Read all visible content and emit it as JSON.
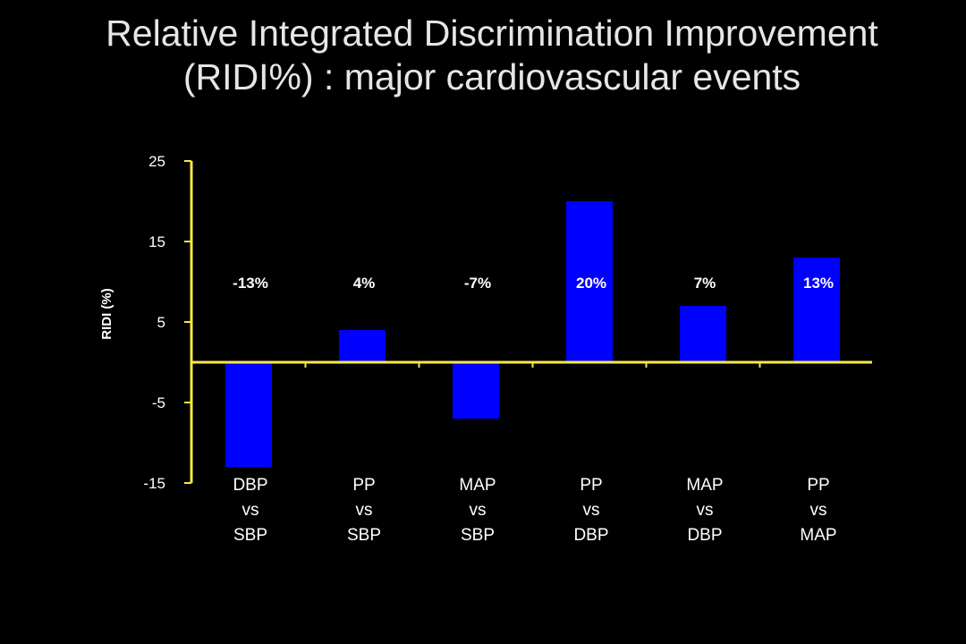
{
  "title_line1": "Relative Integrated Discrimination Improvement",
  "title_line2": "(RIDI%) : major cardiovascular events",
  "colors": {
    "bar": "#0000ff",
    "axis": "#f5e84a",
    "background": "#000000",
    "text": "#ffffff"
  },
  "chart_data": {
    "type": "bar",
    "title": "Relative Integrated Discrimination Improvement (RIDI%) : major cardiovascular events",
    "ylabel": "RIDI (%)",
    "xlabel": "",
    "ylim": [
      -15,
      25
    ],
    "yticks": [
      25,
      15,
      5,
      -5,
      -15
    ],
    "ytick_labels": [
      "25",
      "15",
      "5",
      "-5",
      "-15"
    ],
    "categories": [
      [
        "DBP",
        "vs",
        "SBP"
      ],
      [
        "PP",
        "vs",
        "SBP"
      ],
      [
        "MAP",
        "vs",
        "SBP"
      ],
      [
        "PP",
        "vs",
        "DBP"
      ],
      [
        "MAP",
        "vs",
        "DBP"
      ],
      [
        "PP",
        "vs",
        "MAP"
      ]
    ],
    "values": [
      -13,
      4,
      -7,
      20,
      7,
      13
    ],
    "data_labels": [
      "-13%",
      "4%",
      "-7%",
      "20%",
      "7%",
      "13%"
    ],
    "data_label_level": 10,
    "grid": false,
    "legend": "none"
  }
}
